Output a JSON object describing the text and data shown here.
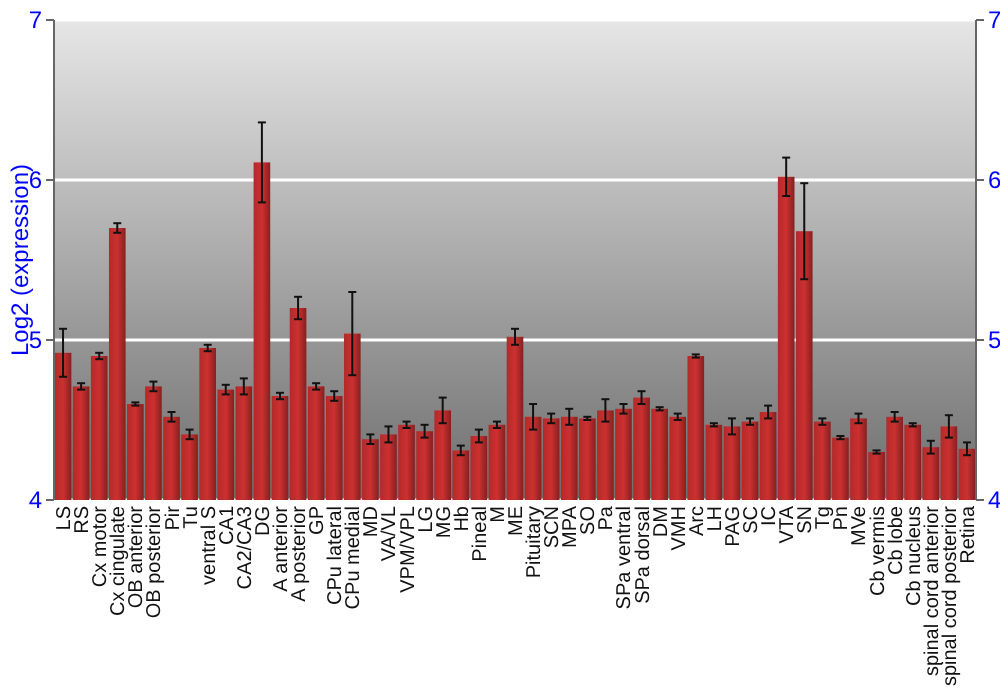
{
  "chart_data": {
    "type": "bar",
    "ylabel": "Log2 (expression)",
    "categories": [
      "LS",
      "RS",
      "Cx motor",
      "Cx cingulate",
      "OB anterior",
      "OB posterior",
      "Pir",
      "Tu",
      "ventral S",
      "CA1",
      "CA2/CA3",
      "DG",
      "A anterior",
      "A posterior",
      "GP",
      "CPu lateral",
      "CPu medial",
      "MD",
      "VA/VL",
      "VPM/VPL",
      "LG",
      "MG",
      "Hb",
      "Pineal",
      "M",
      "ME",
      "Pituitary",
      "SCN",
      "MPA",
      "SO",
      "Pa",
      "SPa ventral",
      "SPa dorsal",
      "DM",
      "VMH",
      "Arc",
      "LH",
      "PAG",
      "SC",
      "IC",
      "VTA",
      "SN",
      "Tg",
      "Pn",
      "MVe",
      "Cb vermis",
      "Cb lobe",
      "Cb nucleus",
      "spinal cord anterior",
      "spinal cord posterior",
      "Retina"
    ],
    "values": [
      4.92,
      4.71,
      4.9,
      5.7,
      4.6,
      4.71,
      4.52,
      4.41,
      4.95,
      4.69,
      4.71,
      6.11,
      4.65,
      5.2,
      4.71,
      4.65,
      5.04,
      4.38,
      4.41,
      4.47,
      4.43,
      4.56,
      4.31,
      4.4,
      4.47,
      5.02,
      4.52,
      4.51,
      4.52,
      4.51,
      4.56,
      4.57,
      4.64,
      4.57,
      4.52,
      4.9,
      4.47,
      4.46,
      4.49,
      4.55,
      6.02,
      5.68,
      4.49,
      4.39,
      4.51,
      4.3,
      4.52,
      4.47,
      4.33,
      4.46,
      4.32
    ],
    "errors": [
      0.15,
      0.02,
      0.02,
      0.03,
      0.01,
      0.03,
      0.03,
      0.03,
      0.02,
      0.03,
      0.05,
      0.25,
      0.02,
      0.07,
      0.02,
      0.03,
      0.26,
      0.03,
      0.05,
      0.02,
      0.04,
      0.08,
      0.03,
      0.04,
      0.02,
      0.05,
      0.08,
      0.03,
      0.05,
      0.01,
      0.07,
      0.03,
      0.04,
      0.01,
      0.02,
      0.01,
      0.01,
      0.05,
      0.02,
      0.04,
      0.12,
      0.3,
      0.02,
      0.01,
      0.03,
      0.01,
      0.03,
      0.01,
      0.04,
      0.07,
      0.04
    ],
    "color": "#b22a2a",
    "ylim": [
      4,
      7
    ],
    "yticks": [
      4,
      5,
      6,
      7
    ],
    "y2lim": [
      4,
      7
    ],
    "y2ticks": [
      4,
      5,
      6,
      7
    ],
    "grid": "y"
  }
}
